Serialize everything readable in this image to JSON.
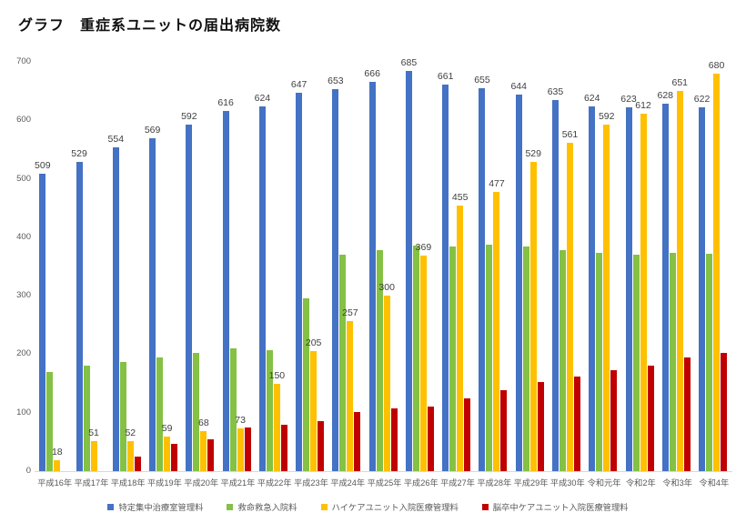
{
  "title": "グラフ　重症系ユニットの届出病院数",
  "chart_data": {
    "type": "bar",
    "title": "グラフ　重症系ユニットの届出病院数",
    "categories": [
      "平成16年",
      "平成17年",
      "平成18年",
      "平成19年",
      "平成20年",
      "平成21年",
      "平成22年",
      "平成23年",
      "平成24年",
      "平成25年",
      "平成26年",
      "平成27年",
      "平成28年",
      "平成29年",
      "平成30年",
      "令和元年",
      "令和2年",
      "令和3年",
      "令和4年"
    ],
    "series": [
      {
        "name": "特定集中治療室管理料",
        "color": "#4472C4",
        "show_labels": true,
        "values": [
          509,
          529,
          554,
          569,
          592,
          616,
          624,
          647,
          653,
          666,
          685,
          661,
          655,
          644,
          635,
          624,
          623,
          628,
          622
        ]
      },
      {
        "name": "救命救急入院料",
        "color": "#84C144",
        "show_labels": false,
        "values": [
          170,
          180,
          187,
          195,
          202,
          210,
          207,
          295,
          371,
          378,
          386,
          384,
          388,
          385,
          378,
          374,
          371,
          374,
          372
        ]
      },
      {
        "name": "ハイケアユニット入院医療管理料",
        "color": "#FFC000",
        "show_labels": true,
        "values": [
          18,
          51,
          52,
          59,
          68,
          73,
          150,
          205,
          257,
          300,
          369,
          455,
          477,
          529,
          561,
          592,
          612,
          651,
          680
        ]
      },
      {
        "name": "脳卒中ケアユニット入院医療管理料",
        "color": "#C00000",
        "show_labels": false,
        "values": [
          null,
          null,
          25,
          46,
          55,
          74,
          80,
          85,
          101,
          107,
          111,
          124,
          138,
          152,
          162,
          172,
          180,
          194,
          203
        ]
      }
    ],
    "xlabel": "",
    "ylabel": "",
    "ylim": [
      0,
      700
    ],
    "yticks": [
      0,
      100,
      200,
      300,
      400,
      500,
      600,
      700
    ],
    "grid": false,
    "legend_position": "bottom"
  },
  "colors": {
    "background": "#FFFFFF",
    "title_text": "#111111",
    "axis_text": "#595959",
    "data_label_text": "#404040",
    "axis_line": "#D9D9D9"
  }
}
